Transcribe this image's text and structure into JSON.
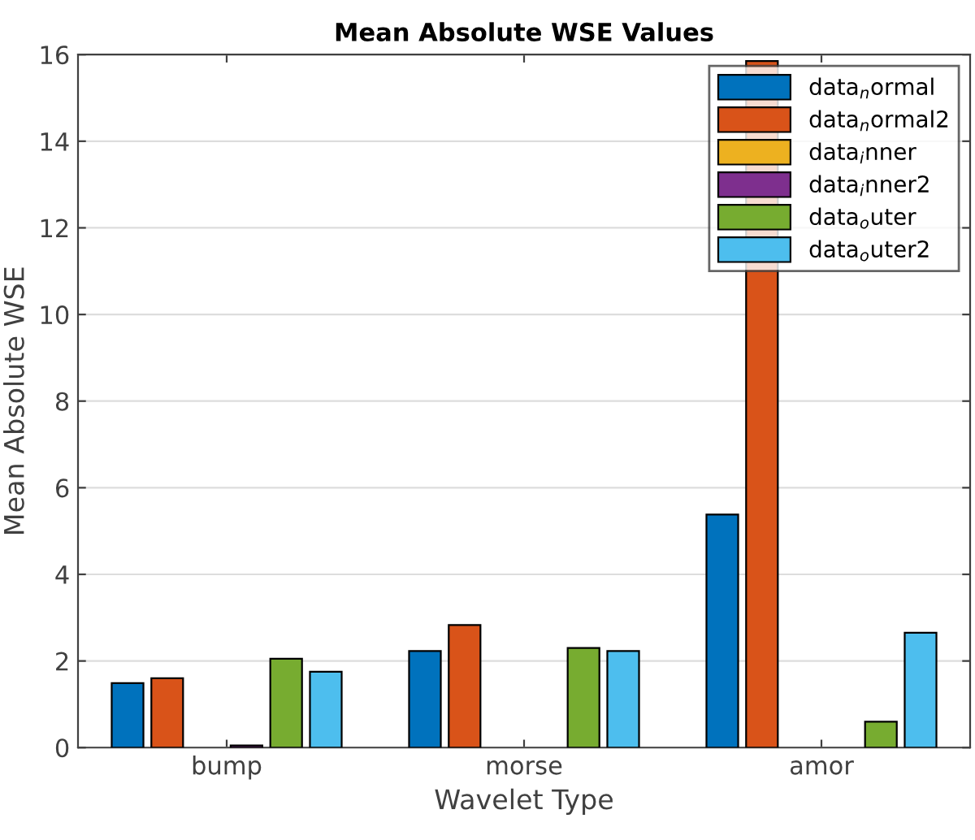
{
  "chart_data": {
    "type": "bar",
    "title": "Mean Absolute WSE Values",
    "xlabel": "Wavelet Type",
    "ylabel": "Mean Absolute WSE",
    "categories": [
      "bump",
      "morse",
      "amor"
    ],
    "series": [
      {
        "name": "data$_{n}$ormal",
        "color": "#0072bd",
        "values": [
          1.49,
          2.23,
          5.38
        ]
      },
      {
        "name": "data$_{n}$ormal2",
        "color": "#d95319",
        "values": [
          1.6,
          2.83,
          15.85
        ]
      },
      {
        "name": "data$_{i}$nner",
        "color": "#edb120",
        "values": [
          null,
          null,
          null
        ]
      },
      {
        "name": "data$_{i}$nner2",
        "color": "#7e2f8e",
        "values": [
          0.05,
          null,
          null
        ]
      },
      {
        "name": "data$_{o}$uter",
        "color": "#77ac30",
        "values": [
          2.05,
          2.3,
          0.6
        ]
      },
      {
        "name": "data$_{o}$uter2",
        "color": "#4dbeee",
        "values": [
          1.75,
          2.23,
          2.65
        ]
      }
    ],
    "ylim": [
      0,
      16
    ],
    "yticks": [
      0,
      2,
      4,
      6,
      8,
      10,
      12,
      14,
      16
    ],
    "grid": "y",
    "legend": "top right"
  }
}
